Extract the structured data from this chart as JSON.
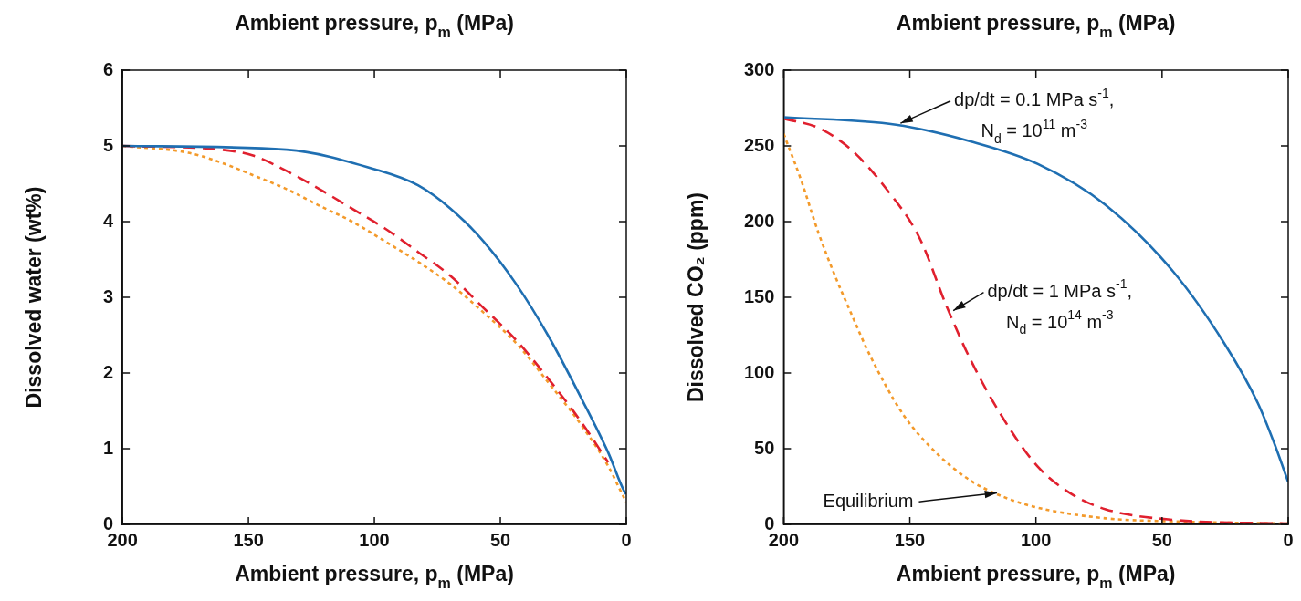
{
  "chart_data": [
    {
      "type": "line",
      "xlabel": "Ambient pressure, p$_{m}$ (MPa)",
      "x2label": "Ambient pressure, p$_{m}$ (MPa)",
      "ylabel": "Dissolved water (wt%)",
      "xlim": [
        200,
        0
      ],
      "xticks": [
        200,
        150,
        100,
        50,
        0
      ],
      "ylim": [
        0,
        6
      ],
      "yticks": [
        0,
        1,
        2,
        3,
        4,
        5,
        6
      ],
      "grid": false,
      "legend": false,
      "marker": "none",
      "series": [
        {
          "color": "#1f6fb2",
          "line_style": "solid",
          "x": [
            200,
            134.9,
            99.7,
            82.7,
            69.7,
            56.7,
            43.6,
            30.6,
            17.6,
            7.2,
            0.7,
            0
          ],
          "values": [
            5.0,
            4.95,
            4.69,
            4.48,
            4.17,
            3.74,
            3.17,
            2.47,
            1.65,
            0.95,
            0.43,
            0.4
          ]
        },
        {
          "color": "#e0202e",
          "line_style": "dashed",
          "x": [
            200,
            160.9,
            147.9,
            134.9,
            121.8,
            108.8,
            95.8,
            82.7,
            69.7,
            56.7,
            43.6,
            30.6,
            17.6,
            7.2
          ],
          "values": [
            5.0,
            4.95,
            4.87,
            4.67,
            4.43,
            4.17,
            3.91,
            3.6,
            3.28,
            2.86,
            2.43,
            1.91,
            1.34,
            0.82
          ]
        },
        {
          "color": "#f39a2b",
          "line_style": "dotted",
          "x": [
            200,
            173.9,
            160.9,
            147.9,
            134.9,
            121.8,
            108.8,
            95.8,
            82.7,
            69.7,
            56.7,
            43.6,
            30.6,
            17.6,
            7.2,
            0.7,
            0
          ],
          "values": [
            5.0,
            4.91,
            4.78,
            4.61,
            4.43,
            4.21,
            4.0,
            3.74,
            3.47,
            3.17,
            2.8,
            2.39,
            1.86,
            1.3,
            0.77,
            0.34,
            0.3
          ]
        }
      ]
    },
    {
      "type": "line",
      "xlabel": "Ambient pressure, p$_{m}$ (MPa)",
      "x2label": "Ambient pressure, p$_{m}$ (MPa)",
      "ylabel": "Dissolved CO₂ (ppm)",
      "xlim": [
        200,
        0
      ],
      "xticks": [
        200,
        150,
        100,
        50,
        0
      ],
      "ylim": [
        0,
        300
      ],
      "yticks": [
        0,
        50,
        100,
        150,
        200,
        250,
        300
      ],
      "grid": false,
      "legend": false,
      "marker": "none",
      "series": [
        {
          "color": "#1f6fb2",
          "line_style": "solid",
          "x": [
            200,
            155.5,
            126,
            99.2,
            72.4,
            45.6,
            25.5,
            12,
            5.4,
            0
          ],
          "values": [
            269,
            264,
            253,
            238,
            211,
            167,
            120,
            80,
            53,
            28
          ]
        },
        {
          "color": "#e0202e",
          "line_style": "dashed",
          "x": [
            200,
            186.3,
            172.9,
            159.5,
            146.1,
            135.4,
            126,
            112.6,
            99.2,
            85.8,
            72.4,
            45.6,
            0
          ],
          "values": [
            268,
            262,
            247,
            222,
            189,
            144,
            109,
            69,
            38,
            20,
            10,
            3,
            0.5
          ]
        },
        {
          "color": "#f39a2b",
          "line_style": "dotted",
          "x": [
            200,
            193,
            186.3,
            179.6,
            172.9,
            166.2,
            152.8,
            139.4,
            126,
            112.6,
            99.2,
            72.4,
            45.6,
            0
          ],
          "values": [
            258,
            227,
            193,
            164,
            138,
            113,
            73,
            47,
            29,
            18,
            11,
            4,
            2,
            0.5
          ]
        }
      ],
      "annotations": [
        {
          "text": "dp/dt = 0.1 MPa s$^{-1}$,",
          "x": 155,
          "y": 264
        },
        "N$_{d}$ = 10$^{11}$ m$^{-3}$",
        {
          "text": "dp/dt = 1 MPa s$^{-1}$,",
          "x": 134,
          "y": 140
        },
        "N$_{d}$ = 10$^{14}$ m$^{-3}$",
        {
          "text": "Equilibrium",
          "x": 114,
          "y": 21
        }
      ]
    }
  ]
}
